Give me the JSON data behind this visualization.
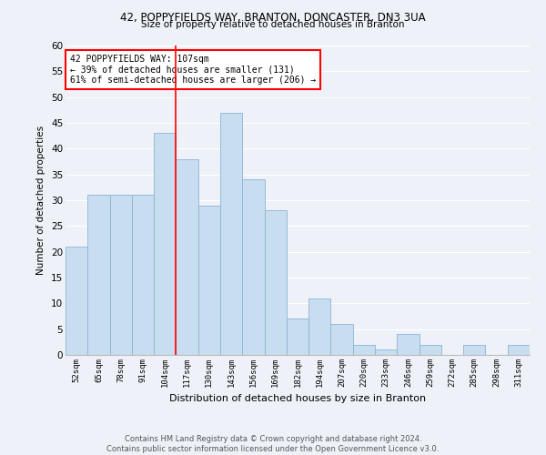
{
  "title1": "42, POPPYFIELDS WAY, BRANTON, DONCASTER, DN3 3UA",
  "title2": "Size of property relative to detached houses in Branton",
  "xlabel": "Distribution of detached houses by size in Branton",
  "ylabel": "Number of detached properties",
  "categories": [
    "52sqm",
    "65sqm",
    "78sqm",
    "91sqm",
    "104sqm",
    "117sqm",
    "130sqm",
    "143sqm",
    "156sqm",
    "169sqm",
    "182sqm",
    "194sqm",
    "207sqm",
    "220sqm",
    "233sqm",
    "246sqm",
    "259sqm",
    "272sqm",
    "285sqm",
    "298sqm",
    "311sqm"
  ],
  "values": [
    21,
    31,
    31,
    31,
    43,
    38,
    29,
    47,
    34,
    28,
    7,
    11,
    6,
    2,
    1,
    4,
    2,
    0,
    2,
    0,
    2
  ],
  "bar_color": "#c8ddef",
  "bar_edge_color": "#8ab4d4",
  "vline_x": 4.5,
  "vline_color": "red",
  "annotation_text": "42 POPPYFIELDS WAY: 107sqm\n← 39% of detached houses are smaller (131)\n61% of semi-detached houses are larger (206) →",
  "annotation_box_color": "white",
  "annotation_box_edge": "red",
  "ylim": [
    0,
    60
  ],
  "yticks": [
    0,
    5,
    10,
    15,
    20,
    25,
    30,
    35,
    40,
    45,
    50,
    55,
    60
  ],
  "footer1": "Contains HM Land Registry data © Crown copyright and database right 2024.",
  "footer2": "Contains public sector information licensed under the Open Government Licence v3.0.",
  "bg_color": "#eef2f8",
  "grid_color": "#ffffff"
}
